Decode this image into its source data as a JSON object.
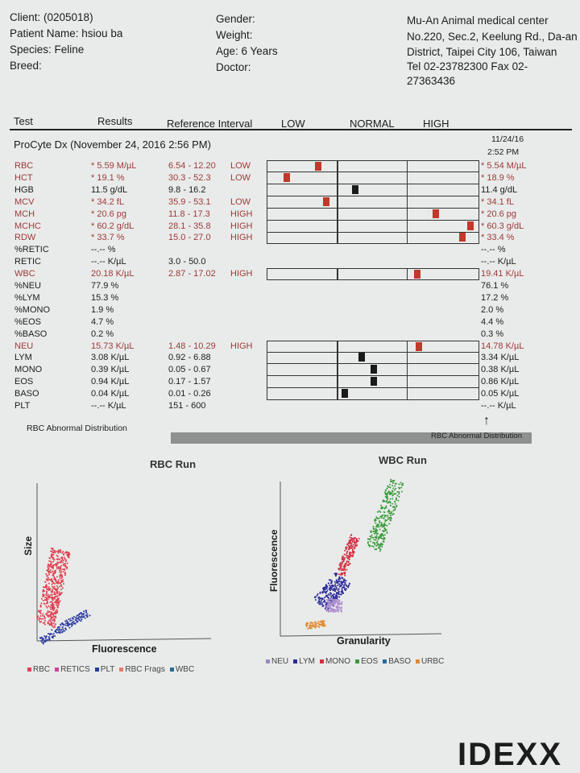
{
  "patient": {
    "client": "Client:  (0205018)",
    "name": "Patient Name: hsiou ba",
    "species": "Species: Feline",
    "breed": "Breed:"
  },
  "details": {
    "gender": "Gender:",
    "weight": "Weight:",
    "age": "Age: 6 Years",
    "doctor": "Doctor:"
  },
  "clinic": {
    "name": "Mu-An Animal medical center",
    "addr1": "No.220, Sec.2, Keelung Rd., Da-an",
    "addr2": "District, Taipei City 106, Taiwan",
    "tel": "Tel 02-23782300  Fax 02-",
    "fax2": "27363436"
  },
  "columns": {
    "test": "Test",
    "results": "Results",
    "ref": "Reference Interval",
    "low": "LOW",
    "normal": "NORMAL",
    "high": "HIGH"
  },
  "run": {
    "title": "ProCyte Dx (November 24, 2016 2:56 PM)",
    "prior_date": "11/24/16",
    "prior_time": "2:52 PM"
  },
  "colors": {
    "abnormal": "#9c3a3a",
    "marker_abnormal": "#c0392b",
    "marker_normal": "#1a1a1a"
  },
  "rows": [
    {
      "test": "RBC",
      "result": "* 5.59 M/µL",
      "ref": "6.54 - 12.20",
      "flag": "LOW",
      "abn": true,
      "marker": 0.23,
      "prior": "* 5.54 M/µL",
      "bar": true
    },
    {
      "test": "HCT",
      "result": "* 19.1 %",
      "ref": "30.3 - 52.3",
      "flag": "LOW",
      "abn": true,
      "marker": 0.08,
      "prior": "* 18.9 %",
      "bar": true
    },
    {
      "test": "HGB",
      "result": "11.5 g/dL",
      "ref": "9.8 - 16.2",
      "flag": "",
      "abn": false,
      "marker": 0.41,
      "prior": "11.4 g/dL",
      "bar": true
    },
    {
      "test": "MCV",
      "result": "* 34.2 fL",
      "ref": "35.9 - 53.1",
      "flag": "LOW",
      "abn": true,
      "marker": 0.27,
      "prior": "* 34.1 fL",
      "bar": true
    },
    {
      "test": "MCH",
      "result": "* 20.6 pg",
      "ref": "11.8 - 17.3",
      "flag": "HIGH",
      "abn": true,
      "marker": 0.8,
      "prior": "* 20.6 pg",
      "bar": true
    },
    {
      "test": "MCHC",
      "result": "* 60.2 g/dL",
      "ref": "28.1 - 35.8",
      "flag": "HIGH",
      "abn": true,
      "marker": 0.97,
      "prior": "* 60.3 g/dL",
      "bar": true
    },
    {
      "test": "RDW",
      "result": "* 33.7 %",
      "ref": "15.0 - 27.0",
      "flag": "HIGH",
      "abn": true,
      "marker": 0.93,
      "prior": "* 33.4 %",
      "bar": true
    },
    {
      "test": "%RETIC",
      "result": "--.-- %",
      "ref": "",
      "flag": "",
      "abn": false,
      "prior": "--.-- %",
      "bar": false
    },
    {
      "test": "RETIC",
      "result": "--.-- K/µL",
      "ref": "3.0 - 50.0",
      "flag": "",
      "abn": false,
      "prior": "--.-- K/µL",
      "bar": false
    },
    {
      "test": "WBC",
      "result": "20.18 K/µL",
      "ref": "2.87 - 17.02",
      "flag": "HIGH",
      "abn": true,
      "marker": 0.71,
      "prior": "19.41 K/µL",
      "bar": true
    },
    {
      "test": "%NEU",
      "result": "77.9 %",
      "ref": "",
      "flag": "",
      "abn": false,
      "prior": "76.1 %",
      "bar": false
    },
    {
      "test": "%LYM",
      "result": "15.3 %",
      "ref": "",
      "flag": "",
      "abn": false,
      "prior": "17.2 %",
      "bar": false
    },
    {
      "test": "%MONO",
      "result": "1.9 %",
      "ref": "",
      "flag": "",
      "abn": false,
      "prior": "2.0 %",
      "bar": false
    },
    {
      "test": "%EOS",
      "result": "4.7 %",
      "ref": "",
      "flag": "",
      "abn": false,
      "prior": "4.4 %",
      "bar": false
    },
    {
      "test": "%BASO",
      "result": "0.2 %",
      "ref": "",
      "flag": "",
      "abn": false,
      "prior": "0.3 %",
      "bar": false
    },
    {
      "test": "NEU",
      "result": "15.73 K/µL",
      "ref": "1.48 - 10.29",
      "flag": "HIGH",
      "abn": true,
      "marker": 0.72,
      "prior": "14.78 K/µL",
      "bar": true
    },
    {
      "test": "LYM",
      "result": "3.08 K/µL",
      "ref": "0.92 - 6.88",
      "flag": "",
      "abn": false,
      "marker": 0.44,
      "prior": "3.34 K/µL",
      "bar": true
    },
    {
      "test": "MONO",
      "result": "0.39 K/µL",
      "ref": "0.05 - 0.67",
      "flag": "",
      "abn": false,
      "marker": 0.5,
      "prior": "0.38 K/µL",
      "bar": true
    },
    {
      "test": "EOS",
      "result": "0.94 K/µL",
      "ref": "0.17 - 1.57",
      "flag": "",
      "abn": false,
      "marker": 0.5,
      "prior": "0.86 K/µL",
      "bar": true
    },
    {
      "test": "BASO",
      "result": "0.04 K/µL",
      "ref": "0.01 - 0.26",
      "flag": "",
      "abn": false,
      "marker": 0.36,
      "prior": "0.05 K/µL",
      "bar": true
    },
    {
      "test": "PLT",
      "result": "--.-- K/µL",
      "ref": "151 - 600",
      "flag": "",
      "abn": false,
      "prior": "--.-- K/µL",
      "bar": false
    }
  ],
  "abnormal_dist": {
    "left": "RBC Abnormal Distribution",
    "right": "RBC Abnormal Distribution"
  },
  "rbc_run": {
    "title": "RBC Run",
    "ylabel": "Size",
    "xlabel": "Fluorescence",
    "legend": [
      {
        "label": "RBC",
        "color": "#e0405a"
      },
      {
        "label": "RETICS",
        "color": "#d0409a"
      },
      {
        "label": "PLT",
        "color": "#2a3aa0"
      },
      {
        "label": "RBC Frags",
        "color": "#e08070"
      },
      {
        "label": "WBC",
        "color": "#2a6a8a"
      }
    ]
  },
  "wbc_run": {
    "title": "WBC Run",
    "ylabel": "Fluorescence",
    "xlabel": "Granularity",
    "legend": [
      {
        "label": "NEU",
        "color": "#9a8ac0"
      },
      {
        "label": "LYM",
        "color": "#2a2a9a"
      },
      {
        "label": "MONO",
        "color": "#d03040"
      },
      {
        "label": "EOS",
        "color": "#3a9a3a"
      },
      {
        "label": "BASO",
        "color": "#2a6a9a"
      },
      {
        "label": "URBC",
        "color": "#e08a30"
      }
    ]
  },
  "brand": "IDEXX"
}
